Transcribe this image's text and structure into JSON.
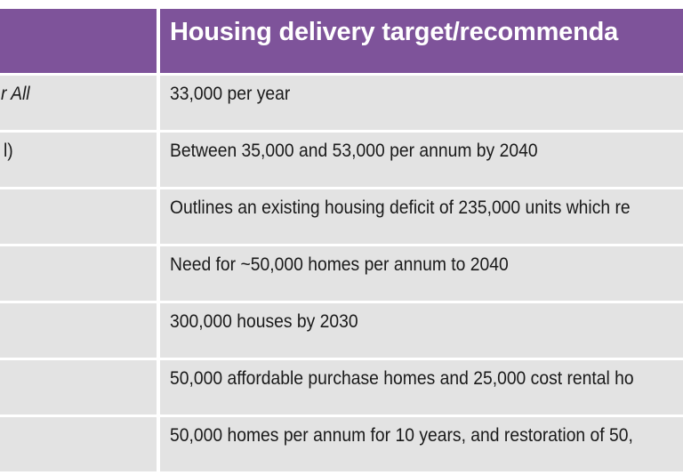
{
  "header": {
    "col1": "",
    "col2": "Housing delivery target/recommenda"
  },
  "rows": [
    {
      "col1": "r All",
      "col1_italic": true,
      "col2": "33,000 per year"
    },
    {
      "col1": "l)",
      "col1_italic": false,
      "col2": "Between 35,000 and 53,000 per annum by 2040"
    },
    {
      "col1": "",
      "col1_italic": false,
      "col2": "Outlines an existing housing deficit of 235,000 units which re"
    },
    {
      "col1": "",
      "col1_italic": false,
      "col2": "Need for ~50,000 homes per annum to 2040"
    },
    {
      "col1": "",
      "col1_italic": false,
      "col2": "300,000 houses by 2030"
    },
    {
      "col1": "",
      "col1_italic": false,
      "col2": "50,000 affordable purchase homes and 25,000 cost rental ho"
    },
    {
      "col1": "",
      "col1_italic": false,
      "col2": "50,000 homes per annum for 10 years, and restoration of 50,"
    }
  ],
  "colors": {
    "header_bg": "#7e539a",
    "row_bg": "#e3e3e3",
    "divider": "#ffffff"
  }
}
